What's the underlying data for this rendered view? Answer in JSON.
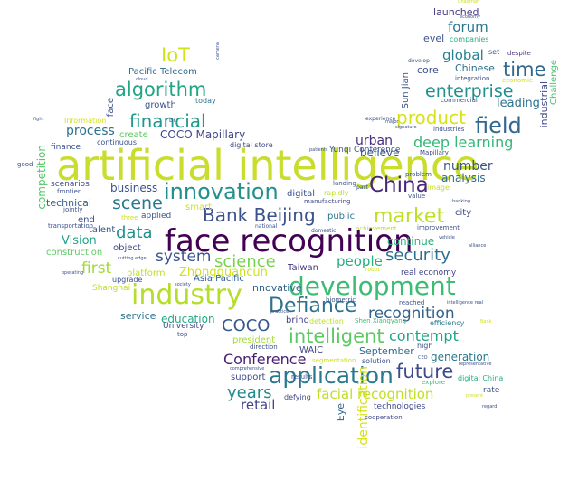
{
  "words": [
    {
      "text": "artificial intelligence",
      "color": "#c8dd2c"
    },
    {
      "text": "face recognition",
      "color": "#440154"
    },
    {
      "text": "development",
      "color": "#3dbc74"
    },
    {
      "text": "industry",
      "color": "#b5de2b"
    },
    {
      "text": "application",
      "color": "#2a788e"
    },
    {
      "text": "innovation",
      "color": "#22918c"
    },
    {
      "text": "field",
      "color": "#31688e"
    },
    {
      "text": "market",
      "color": "#bddf26"
    },
    {
      "text": "Bank Beijing",
      "color": "#3b528b"
    },
    {
      "text": "China",
      "color": "#482777"
    },
    {
      "text": "Defiance",
      "color": "#2d718e"
    },
    {
      "text": "intelligent",
      "color": "#5ec962"
    },
    {
      "text": "algorithm",
      "color": "#21a585"
    },
    {
      "text": "financial",
      "color": "#1f9a8a"
    },
    {
      "text": "enterprise",
      "color": "#218f8d"
    },
    {
      "text": "future",
      "color": "#3e4a89"
    },
    {
      "text": "product",
      "color": "#d8e219"
    },
    {
      "text": "time",
      "color": "#31688e"
    },
    {
      "text": "deep learning",
      "color": "#35b779"
    },
    {
      "text": "security",
      "color": "#2e6f8e"
    },
    {
      "text": "recognition",
      "color": "#33638d"
    },
    {
      "text": "science",
      "color": "#7ad151"
    },
    {
      "text": "scene",
      "color": "#2a788e"
    },
    {
      "text": "data",
      "color": "#21918c"
    },
    {
      "text": "IoT",
      "color": "#d2e21b"
    },
    {
      "text": "COCO",
      "color": "#38588c"
    },
    {
      "text": "years",
      "color": "#23898e"
    },
    {
      "text": "system",
      "color": "#3b528b"
    },
    {
      "text": "first",
      "color": "#a2da37"
    },
    {
      "text": "Conference",
      "color": "#481f70"
    },
    {
      "text": "contempt",
      "color": "#20a386"
    },
    {
      "text": "people",
      "color": "#28ae80"
    },
    {
      "text": "facial recognition",
      "color": "#c2df23"
    },
    {
      "text": "retail",
      "color": "#414487"
    },
    {
      "text": "forum",
      "color": "#2a768e"
    },
    {
      "text": "global",
      "color": "#26828e"
    },
    {
      "text": "number",
      "color": "#3b528b"
    },
    {
      "text": "urban",
      "color": "#472d7b"
    },
    {
      "text": "process",
      "color": "#2c728e"
    },
    {
      "text": "Zhongguancun",
      "color": "#d0e11c"
    },
    {
      "text": "Vision",
      "color": "#20a486"
    },
    {
      "text": "COCO Mapillary",
      "color": "#3f4889"
    },
    {
      "text": "identification",
      "color": "#d5e21a"
    },
    {
      "text": "leading",
      "color": "#2c728e"
    },
    {
      "text": "analysis",
      "color": "#2f6c8e"
    },
    {
      "text": "believe",
      "color": "#39558c"
    },
    {
      "text": "continue",
      "color": "#29af7f"
    },
    {
      "text": "generation",
      "color": "#2a788e"
    },
    {
      "text": "education",
      "color": "#23a983"
    },
    {
      "text": "business",
      "color": "#3b528b"
    },
    {
      "text": "technical",
      "color": "#33638d"
    },
    {
      "text": "competition",
      "color": "#54c568"
    },
    {
      "text": "innovative",
      "color": "#32648e"
    },
    {
      "text": "launched",
      "color": "#453781"
    },
    {
      "text": "Chinese",
      "color": "#2d708e"
    },
    {
      "text": "industrial",
      "color": "#3e4989"
    },
    {
      "text": "Challenge",
      "color": "#4ac16d"
    },
    {
      "text": "Pacific Telecom",
      "color": "#2f6b8e"
    },
    {
      "text": "growth",
      "color": "#3b528b"
    },
    {
      "text": "create",
      "color": "#5ec962"
    },
    {
      "text": "core",
      "color": "#3b528b"
    },
    {
      "text": "level",
      "color": "#3b528b"
    },
    {
      "text": "service",
      "color": "#2c728e"
    },
    {
      "text": "University",
      "color": "#404688"
    },
    {
      "text": "Taiwan",
      "color": "#453781"
    },
    {
      "text": "September",
      "color": "#2f6b8e"
    },
    {
      "text": "support",
      "color": "#3e4989"
    },
    {
      "text": "Eye",
      "color": "#33638d"
    },
    {
      "text": "Sun Jian",
      "color": "#3b528b"
    },
    {
      "text": "bring",
      "color": "#414487"
    },
    {
      "text": "WAIC",
      "color": "#3e4989"
    },
    {
      "text": "president",
      "color": "#a2da37"
    },
    {
      "text": "digital",
      "color": "#3b528b"
    },
    {
      "text": "Yunqi Conference",
      "color": "#3b528b"
    },
    {
      "text": "public",
      "color": "#2a788e"
    },
    {
      "text": "smart",
      "color": "#cde11d"
    },
    {
      "text": "Asia Pacific",
      "color": "#32648e"
    },
    {
      "text": "platform",
      "color": "#bddf26"
    },
    {
      "text": "end",
      "color": "#3b528b"
    },
    {
      "text": "talent",
      "color": "#3b528b"
    },
    {
      "text": "object",
      "color": "#3e4989"
    },
    {
      "text": "construction",
      "color": "#5ec962"
    },
    {
      "text": "applied",
      "color": "#3b528b"
    },
    {
      "text": "city",
      "color": "#3e4989"
    },
    {
      "text": "technologies",
      "color": "#3e4989"
    },
    {
      "text": "real economy",
      "color": "#404688"
    },
    {
      "text": "companies",
      "color": "#2ab07f"
    },
    {
      "text": "Information",
      "color": "#d8e219"
    },
    {
      "text": "face",
      "color": "#3b528b"
    },
    {
      "text": "finance",
      "color": "#3b528b"
    },
    {
      "text": "scenarios",
      "color": "#3e4989"
    },
    {
      "text": "continuous",
      "color": "#3b528b"
    },
    {
      "text": "digital store",
      "color": "#3e4989"
    },
    {
      "text": "today",
      "color": "#2a788e"
    },
    {
      "text": "rapidly",
      "color": "#bddf26"
    },
    {
      "text": "manufacturing",
      "color": "#3e4989"
    },
    {
      "text": "Mapillary",
      "color": "#3e4989"
    },
    {
      "text": "Shanghai",
      "color": "#bddf26"
    },
    {
      "text": "upgrade",
      "color": "#3b528b"
    },
    {
      "text": "detection",
      "color": "#bddf26"
    },
    {
      "text": "defying",
      "color": "#3e4989"
    },
    {
      "text": "solution",
      "color": "#3b528b"
    },
    {
      "text": "explore",
      "color": "#3dbc74"
    },
    {
      "text": "rate",
      "color": "#3b528b"
    },
    {
      "text": "digital China",
      "color": "#29af7f"
    },
    {
      "text": "cooperation",
      "color": "#3e4989"
    },
    {
      "text": "high",
      "color": "#3b528b"
    },
    {
      "text": "efficiency",
      "color": "#2a788e"
    },
    {
      "text": "Shen Xiangyang",
      "color": "#3dbc74"
    },
    {
      "text": "economic",
      "color": "#cde11d"
    },
    {
      "text": "integration",
      "color": "#3b528b"
    },
    {
      "text": "industries",
      "color": "#3b528b"
    },
    {
      "text": "commercial",
      "color": "#3b528b"
    },
    {
      "text": "image",
      "color": "#c2df23"
    },
    {
      "text": "improvement",
      "color": "#3b528b"
    },
    {
      "text": "achievement",
      "color": "#bddf26"
    },
    {
      "text": "problem",
      "color": "#3b528b"
    },
    {
      "text": "value",
      "color": "#3b528b"
    },
    {
      "text": "biometric",
      "color": "#3b528b"
    },
    {
      "text": "results",
      "color": "#3b528b"
    },
    {
      "text": "direction",
      "color": "#3b528b"
    },
    {
      "text": "top",
      "color": "#3b528b"
    },
    {
      "text": "good",
      "color": "#3b528b"
    },
    {
      "text": "frontier",
      "color": "#3b528b"
    },
    {
      "text": "transportation",
      "color": "#3b528b"
    },
    {
      "text": "jointly",
      "color": "#3b528b"
    },
    {
      "text": "three",
      "color": "#cde11d"
    },
    {
      "text": "landing",
      "color": "#3b528b"
    },
    {
      "text": "past",
      "color": "#3b528b"
    },
    {
      "text": "segmentation",
      "color": "#cde11d"
    },
    {
      "text": "national",
      "color": "#3b528b"
    },
    {
      "text": "domestic",
      "color": "#3b528b"
    },
    {
      "text": "set",
      "color": "#3b528b"
    },
    {
      "text": "despite",
      "color": "#453781"
    },
    {
      "text": "develop",
      "color": "#3b528b"
    },
    {
      "text": "experience",
      "color": "#3b528b"
    },
    {
      "text": "reached",
      "color": "#3b528b"
    },
    {
      "text": "robot",
      "color": "#cde11d"
    },
    {
      "text": "cutting edge",
      "color": "#3b528b"
    },
    {
      "text": "Dr",
      "color": "#3b528b"
    },
    {
      "text": "society",
      "color": "#3b528b"
    },
    {
      "text": "practice",
      "color": "#3b528b"
    },
    {
      "text": "comprehensive",
      "color": "#3b528b"
    },
    {
      "text": "patients",
      "color": "#3b528b"
    },
    {
      "text": "vehicle",
      "color": "#3b528b"
    },
    {
      "text": "intelligence real",
      "color": "#3b528b"
    },
    {
      "text": "cloud",
      "color": "#3b528b"
    },
    {
      "text": "camera",
      "color": "#3b528b"
    },
    {
      "text": "Chairman",
      "color": "#cde11d"
    },
    {
      "text": "economy",
      "color": "#3b528b"
    },
    {
      "text": "Bank",
      "color": "#cde11d"
    },
    {
      "text": "regard",
      "color": "#3b528b"
    },
    {
      "text": "present",
      "color": "#cde11d"
    },
    {
      "text": "CEO",
      "color": "#3b528b"
    },
    {
      "text": "representative",
      "color": "#3b528b"
    },
    {
      "text": "banking",
      "color": "#3b528b"
    },
    {
      "text": "signature",
      "color": "#3b528b"
    },
    {
      "text": "major",
      "color": "#3b528b"
    },
    {
      "text": "alliance",
      "color": "#3b528b"
    },
    {
      "text": "operating",
      "color": "#3b528b"
    },
    {
      "text": "fight",
      "color": "#3b528b"
    }
  ]
}
